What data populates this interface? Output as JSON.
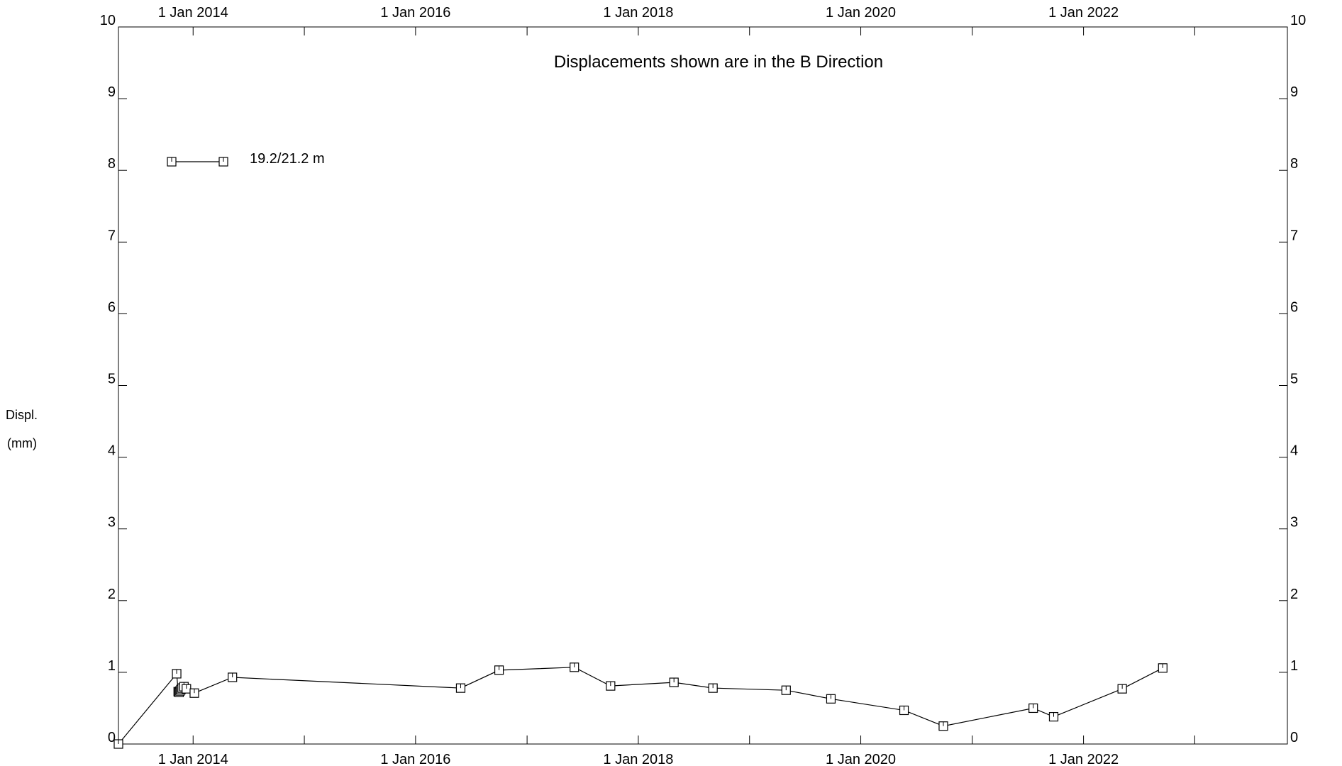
{
  "chart_data": {
    "type": "line",
    "title": "Displacements shown are in the  B Direction",
    "ylabel_lines": [
      "Displ.",
      "(mm)"
    ],
    "xlabel": "",
    "xlim": [
      "2013-05-01",
      "2023-11-01"
    ],
    "ylim": [
      0,
      10
    ],
    "x_ticks": [
      "1 Jan 2014",
      "1 Jan 2016",
      "1 Jan 2018",
      "1 Jan 2020",
      "1 Jan 2022"
    ],
    "x_tick_dates": [
      "2014-01-01",
      "2016-01-01",
      "2018-01-01",
      "2020-01-01",
      "2022-01-01"
    ],
    "x_minor_tick_dates": [
      "2015-01-01",
      "2017-01-01",
      "2019-01-01",
      "2021-01-01",
      "2023-01-01"
    ],
    "y_ticks": [
      0,
      1,
      2,
      3,
      4,
      5,
      6,
      7,
      8,
      9,
      10
    ],
    "grid": false,
    "legend_position": "top-left",
    "series": [
      {
        "name": "19.2/21.2 m",
        "marker": "square",
        "color": "#000000",
        "x": [
          "2013-05-01",
          "2013-11-08",
          "2013-11-13",
          "2013-11-16",
          "2013-11-19",
          "2013-11-22",
          "2013-11-26",
          "2013-12-02",
          "2013-12-10",
          "2014-01-05",
          "2014-05-10",
          "2016-05-28",
          "2016-10-01",
          "2017-06-05",
          "2017-10-02",
          "2018-04-28",
          "2018-09-03",
          "2019-05-01",
          "2019-09-25",
          "2020-05-22",
          "2020-09-28",
          "2021-07-20",
          "2021-09-25",
          "2022-05-08",
          "2022-09-18"
        ],
        "y": [
          0.0,
          0.98,
          0.73,
          0.72,
          0.74,
          0.76,
          0.78,
          0.8,
          0.77,
          0.71,
          0.93,
          0.78,
          1.03,
          1.07,
          0.81,
          0.86,
          0.78,
          0.75,
          0.63,
          0.47,
          0.25,
          0.5,
          0.38,
          0.77,
          1.06
        ]
      }
    ]
  }
}
